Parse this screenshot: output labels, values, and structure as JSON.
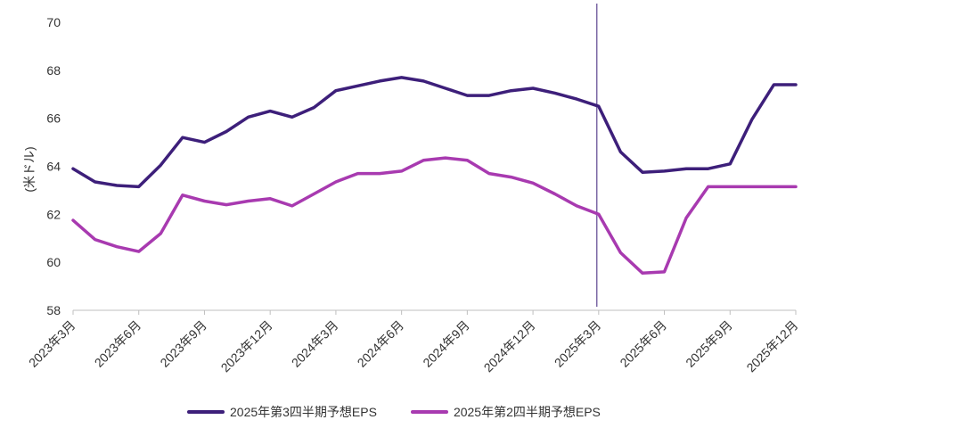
{
  "chart_data": {
    "type": "line",
    "title": "",
    "xlabel": "",
    "ylabel": "(米ドル)",
    "ylim": [
      58,
      70
    ],
    "yticks": [
      58,
      60,
      62,
      64,
      66,
      68,
      70
    ],
    "xtick_labels": [
      "2023年3月",
      "2023年6月",
      "2023年9月",
      "2023年12月",
      "2024年3月",
      "2024年6月",
      "2024年9月",
      "2024年12月",
      "2025年3月",
      "2025年6月",
      "2025年9月",
      "2025年12月"
    ],
    "x": [
      "2023-03",
      "2023-04",
      "2023-05",
      "2023-06",
      "2023-07",
      "2023-08",
      "2023-09",
      "2023-10",
      "2023-11",
      "2023-12",
      "2024-01",
      "2024-02",
      "2024-03",
      "2024-04",
      "2024-05",
      "2024-06",
      "2024-07",
      "2024-08",
      "2024-09",
      "2024-10",
      "2024-11",
      "2024-12",
      "2025-01",
      "2025-02",
      "2025-03",
      "2025-04",
      "2025-05",
      "2025-06",
      "2025-07",
      "2025-08",
      "2025-09",
      "2025-10",
      "2025-11",
      "2025-12"
    ],
    "vertical_marker": "2025-03",
    "series": [
      {
        "name": "2025年第3四半期予想EPS",
        "color": "#3d1f7a",
        "values": [
          63.9,
          63.35,
          63.2,
          63.15,
          64.05,
          65.2,
          65.0,
          65.45,
          66.05,
          66.3,
          66.05,
          66.45,
          67.15,
          67.35,
          67.55,
          67.7,
          67.55,
          67.25,
          66.95,
          66.95,
          67.15,
          67.25,
          67.05,
          66.8,
          66.5,
          64.6,
          63.75,
          63.8,
          63.9,
          63.9,
          64.1,
          65.95,
          67.4,
          67.4
        ]
      },
      {
        "name": "2025年第2四半期予想EPS",
        "color": "#a83ab0",
        "values": [
          61.75,
          60.95,
          60.65,
          60.45,
          61.2,
          62.8,
          62.55,
          62.4,
          62.55,
          62.65,
          62.35,
          62.85,
          63.35,
          63.7,
          63.7,
          63.8,
          64.25,
          64.35,
          64.25,
          63.7,
          63.55,
          63.3,
          62.85,
          62.35,
          62.0,
          60.4,
          59.55,
          59.6,
          61.85,
          63.15,
          63.15,
          63.15,
          63.15,
          63.15
        ]
      }
    ],
    "grid": false,
    "legend": "bottom"
  }
}
